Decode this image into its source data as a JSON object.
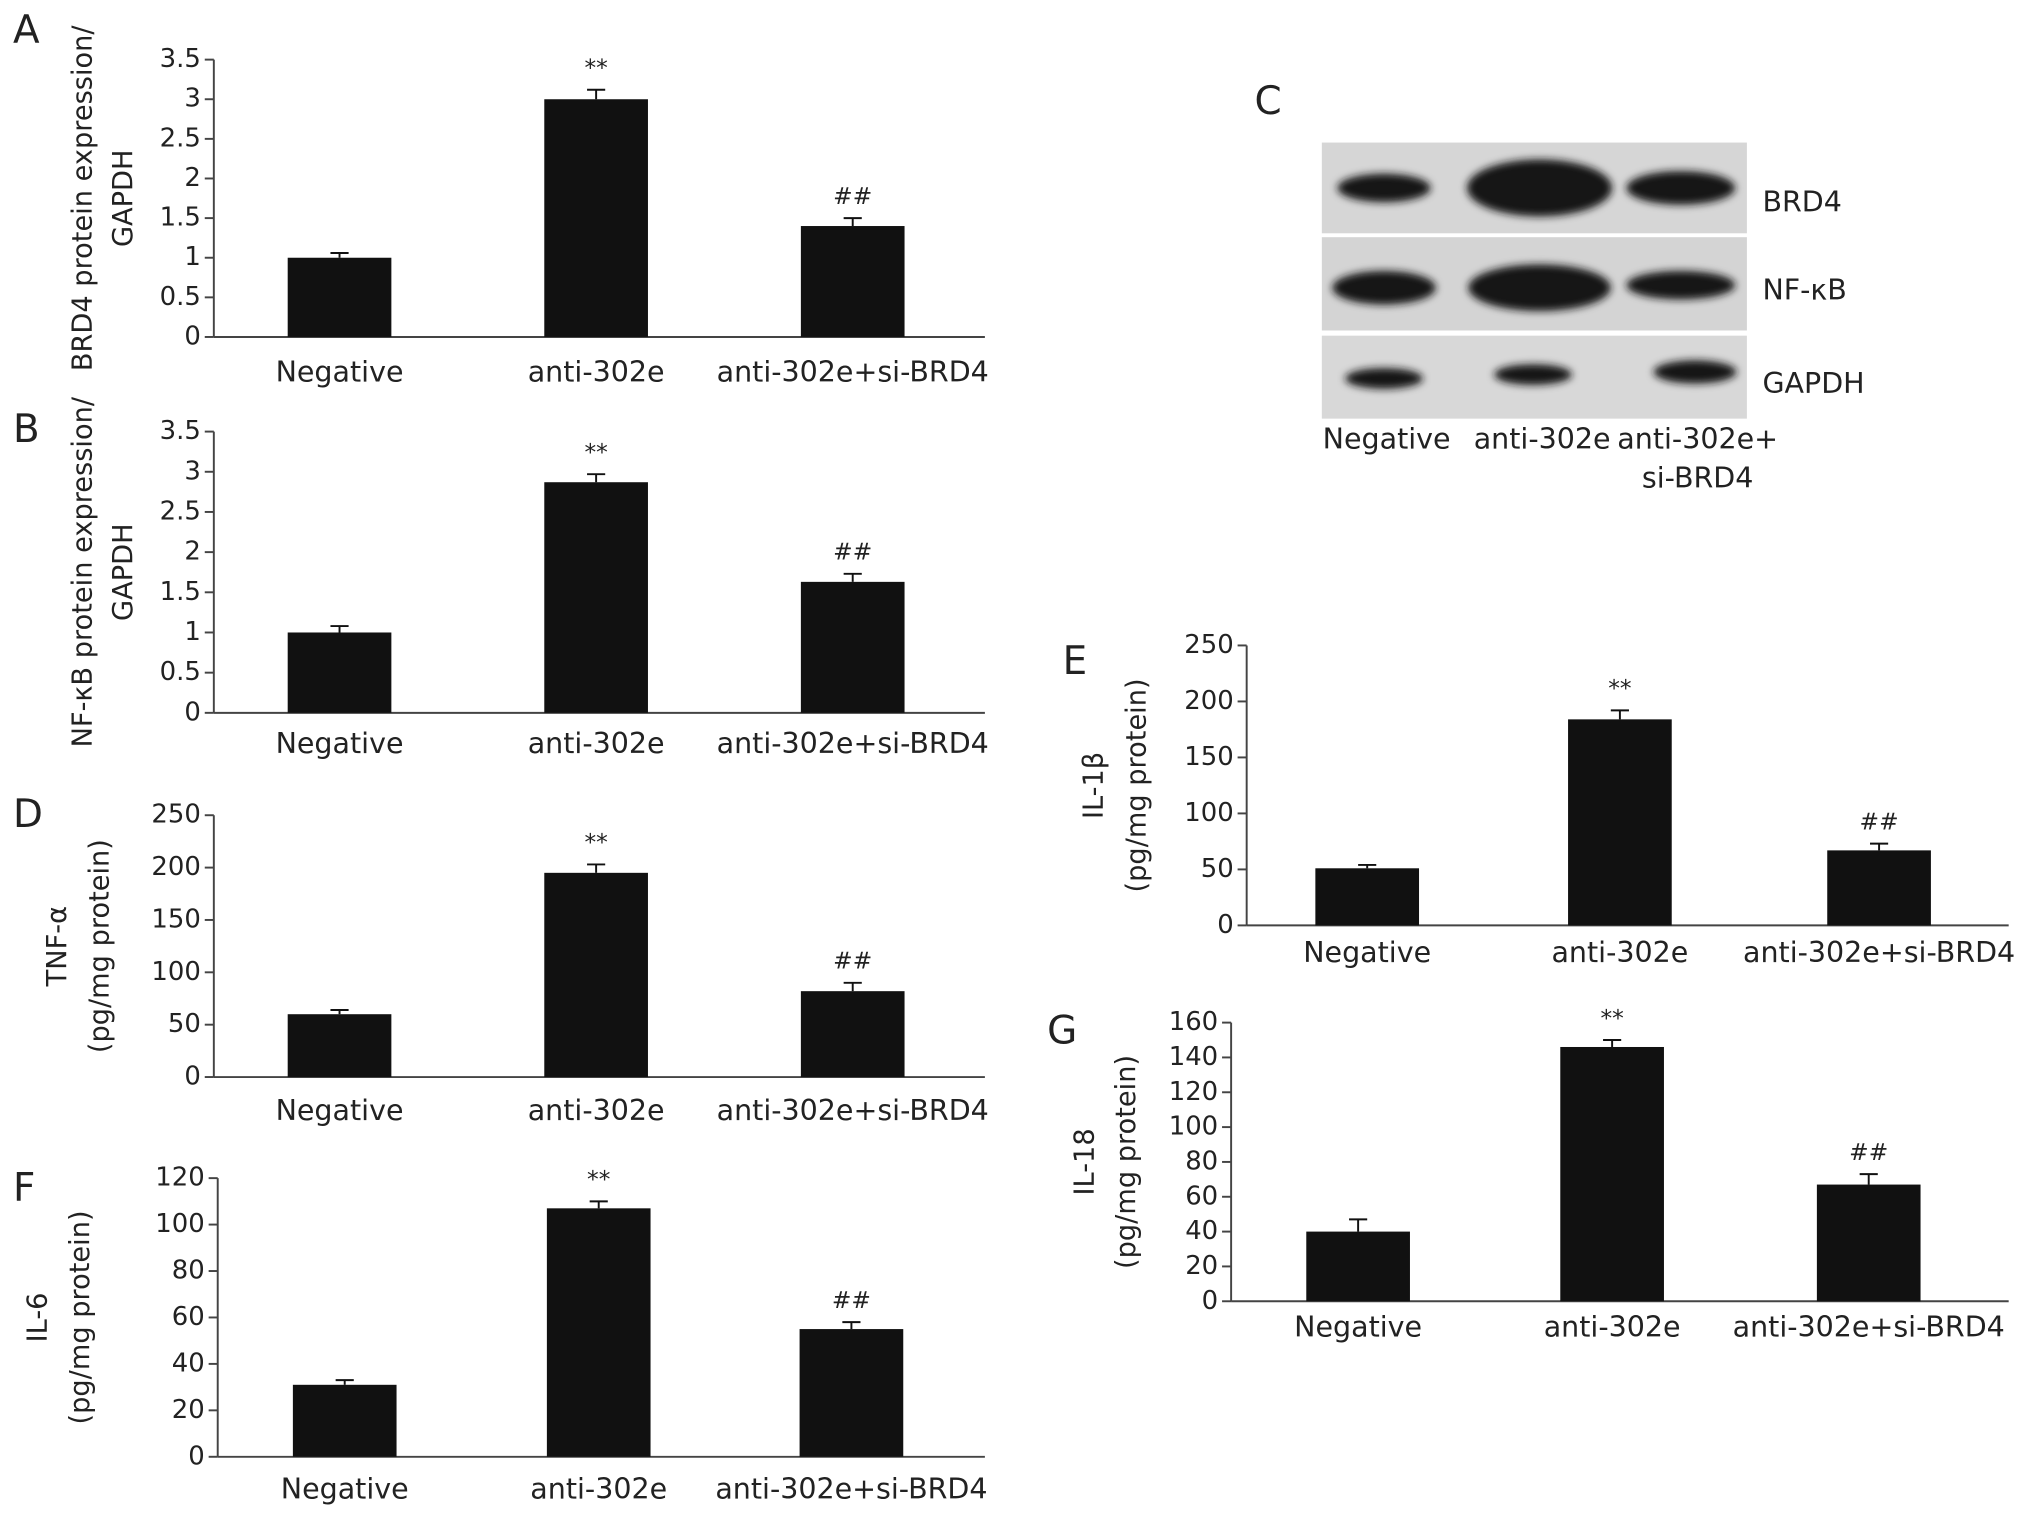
{
  "chart_data": [
    {
      "type": "bar",
      "panel": "A",
      "ylabel": [
        "BRD4 protein expression/",
        "GAPDH"
      ],
      "categories": [
        "Negative",
        "anti-302e",
        "anti-302e+si-BRD4"
      ],
      "values": [
        1.0,
        3.0,
        1.4
      ],
      "errors": [
        0.06,
        0.12,
        0.1
      ],
      "annotations": [
        null,
        "**",
        "##"
      ],
      "color": "#111111",
      "ylim": [
        0,
        3.5
      ],
      "yticks": [
        0,
        0.5,
        1,
        1.5,
        2,
        2.5,
        3,
        3.5
      ]
    },
    {
      "type": "bar",
      "panel": "B",
      "ylabel": [
        "NF-κB protein expression/",
        "GAPDH"
      ],
      "categories": [
        "Negative",
        "anti-302e",
        "anti-302e+si-BRD4"
      ],
      "values": [
        1.0,
        2.87,
        1.63
      ],
      "errors": [
        0.08,
        0.1,
        0.1
      ],
      "annotations": [
        null,
        "**",
        "##"
      ],
      "color": "#111111",
      "ylim": [
        0,
        3.5
      ],
      "yticks": [
        0,
        0.5,
        1,
        1.5,
        2,
        2.5,
        3,
        3.5
      ]
    },
    {
      "type": "bar",
      "panel": "D",
      "ylabel": [
        "TNF-α",
        "(pg/mg protein)"
      ],
      "categories": [
        "Negative",
        "anti-302e",
        "anti-302e+si-BRD4"
      ],
      "values": [
        60,
        195,
        82
      ],
      "errors": [
        4,
        8,
        8
      ],
      "annotations": [
        null,
        "**",
        "##"
      ],
      "color": "#111111",
      "ylim": [
        0,
        250
      ],
      "yticks": [
        0,
        50,
        100,
        150,
        200,
        250
      ]
    },
    {
      "type": "bar",
      "panel": "F",
      "ylabel": [
        "IL-6",
        "(pg/mg protein)"
      ],
      "categories": [
        "Negative",
        "anti-302e",
        "anti-302e+si-BRD4"
      ],
      "values": [
        31,
        107,
        55
      ],
      "errors": [
        2,
        3,
        3
      ],
      "annotations": [
        null,
        "**",
        "##"
      ],
      "color": "#111111",
      "ylim": [
        0,
        120
      ],
      "yticks": [
        0,
        20,
        40,
        60,
        80,
        100,
        120
      ]
    },
    {
      "type": "bar",
      "panel": "E",
      "ylabel": [
        "IL-1β",
        "(pg/mg protein)"
      ],
      "categories": [
        "Negative",
        "anti-302e",
        "anti-302e+si-BRD4"
      ],
      "values": [
        51,
        184,
        67
      ],
      "errors": [
        3,
        8,
        6
      ],
      "annotations": [
        null,
        "**",
        "##"
      ],
      "color": "#111111",
      "ylim": [
        0,
        250
      ],
      "yticks": [
        0,
        50,
        100,
        150,
        200,
        250
      ]
    },
    {
      "type": "bar",
      "panel": "G",
      "ylabel": [
        "IL-18",
        "(pg/mg protein)"
      ],
      "categories": [
        "Negative",
        "anti-302e",
        "anti-302e+si-BRD4"
      ],
      "values": [
        40,
        146,
        67
      ],
      "errors": [
        7,
        4,
        6
      ],
      "annotations": [
        null,
        "**",
        "##"
      ],
      "color": "#111111",
      "ylim": [
        0,
        160
      ],
      "yticks": [
        0,
        20,
        40,
        60,
        80,
        100,
        120,
        140,
        160
      ]
    }
  ],
  "blot": {
    "panel": "C",
    "rows": [
      "BRD4",
      "NF-κB",
      "GAPDH"
    ],
    "lanes": [
      [
        "Negative"
      ],
      [
        "anti-302e"
      ],
      [
        "anti-302e+",
        "si-BRD4"
      ]
    ]
  }
}
